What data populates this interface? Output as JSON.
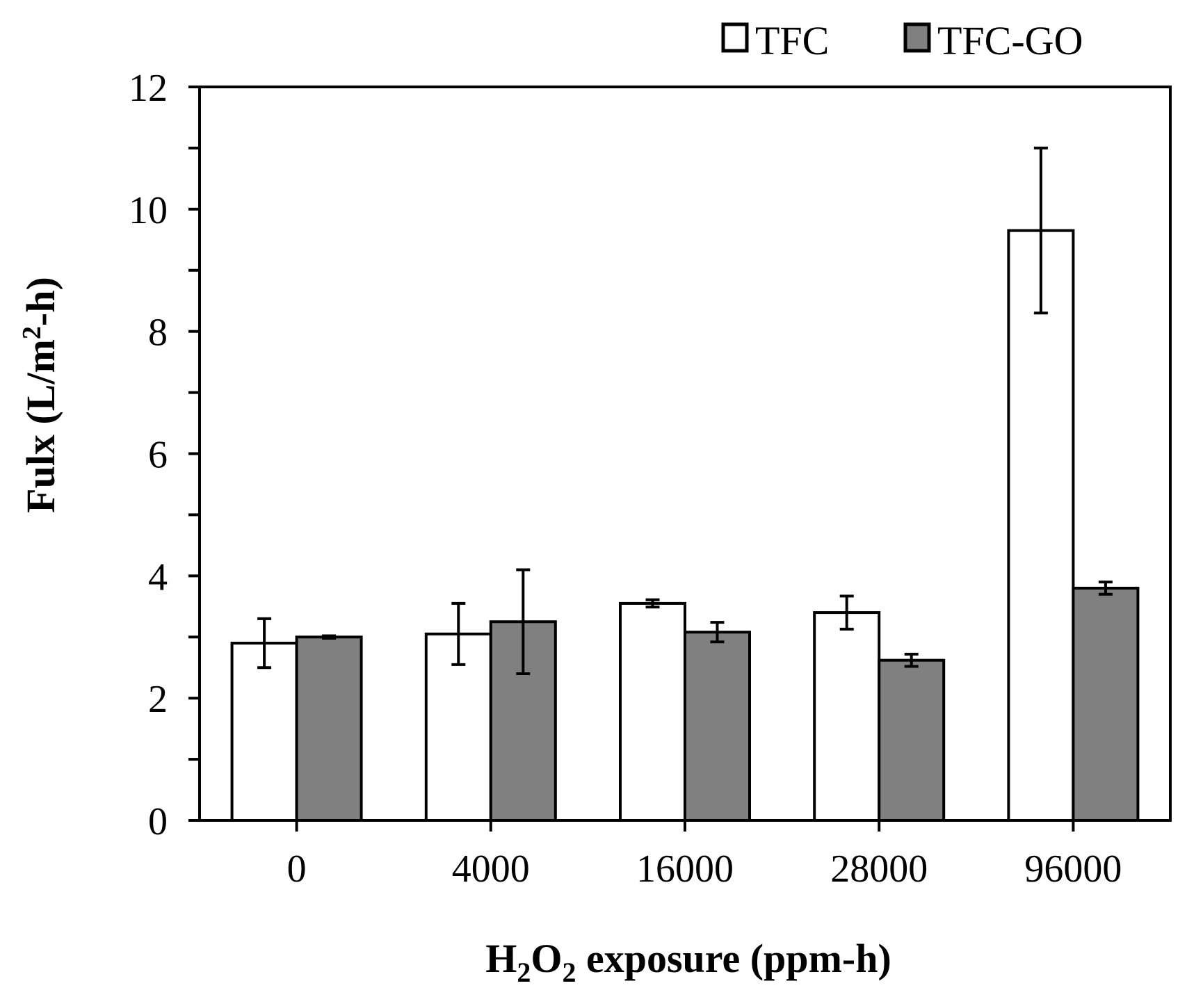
{
  "chart_data": {
    "type": "bar",
    "title": "",
    "categories": [
      "0",
      "4000",
      "16000",
      "28000",
      "96000"
    ],
    "series": [
      {
        "name": "TFC",
        "color": "#ffffff",
        "values": [
          2.9,
          3.05,
          3.55,
          3.4,
          9.65
        ],
        "error": [
          0.4,
          0.5,
          0.06,
          0.27,
          1.35
        ]
      },
      {
        "name": "TFC-GO",
        "color": "#808080",
        "values": [
          3.0,
          3.25,
          3.08,
          2.62,
          3.8
        ],
        "error": [
          0.02,
          0.85,
          0.16,
          0.1,
          0.1
        ]
      }
    ],
    "ylim": [
      0,
      12
    ],
    "yticks": [
      0,
      2,
      4,
      6,
      8,
      10,
      12
    ],
    "ylabel": {
      "parts": [
        "Fulx (L/m",
        "2",
        "-h)"
      ]
    },
    "xlabel": {
      "parts": [
        "H",
        "2",
        "O",
        "2",
        " exposure (ppm-h)"
      ]
    },
    "legend_position": "top-right",
    "grid": false
  }
}
